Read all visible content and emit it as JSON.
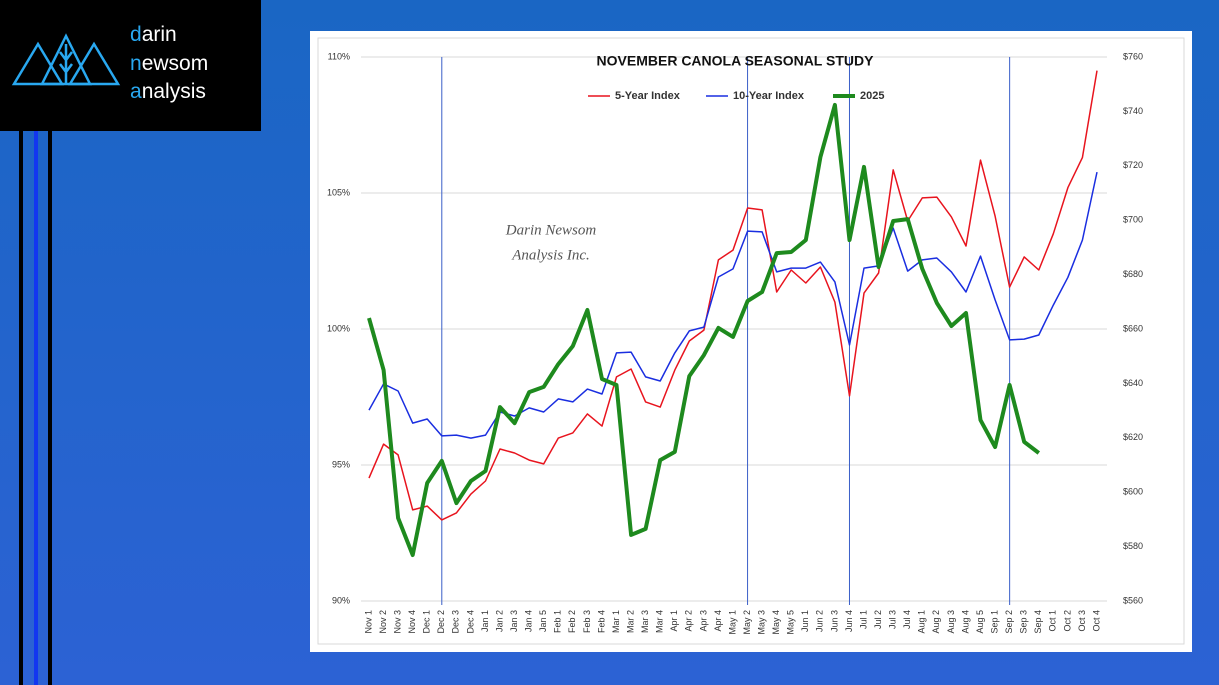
{
  "brand": {
    "line1": {
      "first": "d",
      "rest": "arin"
    },
    "line2": {
      "first": "n",
      "rest": "ewsom"
    },
    "line3": {
      "first": "a",
      "rest": "nalysis"
    }
  },
  "chart_data": {
    "type": "line",
    "title": "NOVEMBER CANOLA SEASONAL STUDY",
    "watermark": [
      "Darin Newsom",
      "Analysis Inc."
    ],
    "legend": "top",
    "grid": true,
    "categories": [
      "Nov 1",
      "Nov 2",
      "Nov 3",
      "Nov 4",
      "Dec 1",
      "Dec 2",
      "Dec 3",
      "Dec 4",
      "Jan 1",
      "Jan 2",
      "Jan 3",
      "Jan 4",
      "Jan 5",
      "Feb 1",
      "Feb 2",
      "Feb 3",
      "Feb 4",
      "Mar 1",
      "Mar 2",
      "Mar 3",
      "Mar 4",
      "Apr 1",
      "Apr 2",
      "Apr 3",
      "Apr 4",
      "May 1",
      "May 2",
      "May 3",
      "May 4",
      "May 5",
      "Jun 1",
      "Jun 2",
      "Jun 3",
      "Jun 4",
      "Jul 1",
      "Jul 2",
      "Jul 3",
      "Jul 4",
      "Aug 1",
      "Aug 2",
      "Aug 3",
      "Aug 4",
      "Aug 5",
      "Sep 1",
      "Sep 2",
      "Sep 3",
      "Sep 4",
      "Oct 1",
      "Oct 2",
      "Oct 3",
      "Oct 4"
    ],
    "reference_lines": [
      5,
      26,
      33,
      44
    ],
    "ylim": [
      90,
      110
    ],
    "yticks": [
      {
        "value": 90,
        "label": "90%"
      },
      {
        "value": 95,
        "label": "95%"
      },
      {
        "value": 100,
        "label": "100%"
      },
      {
        "value": 105,
        "label": "105%"
      },
      {
        "value": 110,
        "label": "110%"
      }
    ],
    "y2lim": [
      560,
      760
    ],
    "y2ticks": [
      {
        "value": 560,
        "label": "$560"
      },
      {
        "value": 580,
        "label": "$580"
      },
      {
        "value": 600,
        "label": "$600"
      },
      {
        "value": 620,
        "label": "$620"
      },
      {
        "value": 640,
        "label": "$640"
      },
      {
        "value": 660,
        "label": "$660"
      },
      {
        "value": 680,
        "label": "$680"
      },
      {
        "value": 700,
        "label": "$700"
      },
      {
        "value": 720,
        "label": "$720"
      },
      {
        "value": 740,
        "label": "$740"
      },
      {
        "value": 760,
        "label": "$760"
      }
    ],
    "series": [
      {
        "name": "5-Year Index",
        "color": "#e8141e",
        "width": 1.5,
        "values": [
          94.52,
          95.77,
          95.37,
          93.35,
          93.49,
          92.98,
          93.24,
          93.93,
          94.41,
          95.59,
          95.44,
          95.18,
          95.04,
          95.99,
          96.18,
          96.88,
          96.43,
          98.24,
          98.53,
          97.32,
          97.13,
          98.49,
          99.56,
          99.96,
          102.54,
          102.9,
          104.45,
          104.38,
          101.36,
          102.17,
          101.69,
          102.28,
          100.99,
          97.54,
          101.32,
          102.06,
          105.85,
          103.97,
          104.82,
          104.85,
          104.12,
          103.05,
          106.21,
          104.15,
          101.54,
          102.65,
          102.17,
          103.5,
          105.2,
          106.3,
          109.5
        ]
      },
      {
        "name": "10-Year Index",
        "color": "#1a2ee0",
        "width": 1.5,
        "values": [
          97.02,
          97.98,
          97.72,
          96.54,
          96.69,
          96.07,
          96.1,
          95.99,
          96.1,
          96.95,
          96.8,
          97.1,
          96.95,
          97.43,
          97.32,
          97.79,
          97.61,
          99.12,
          99.15,
          98.24,
          98.09,
          99.12,
          99.93,
          100.07,
          101.91,
          102.21,
          103.6,
          103.57,
          102.1,
          102.24,
          102.24,
          102.46,
          101.73,
          99.41,
          102.24,
          102.32,
          103.71,
          102.13,
          102.54,
          102.61,
          102.1,
          101.36,
          102.68,
          101.07,
          99.6,
          99.63,
          99.78,
          100.88,
          101.9,
          103.27,
          105.77
        ]
      },
      {
        "name": "2025",
        "color": "#1e8a1e",
        "width": 4,
        "axis": "y2",
        "values": [
          664.0,
          644.9,
          590.5,
          576.9,
          603.4,
          611.5,
          596.0,
          604.1,
          607.8,
          631.3,
          625.4,
          636.8,
          638.7,
          647.1,
          653.7,
          667.0,
          641.6,
          639.4,
          584.3,
          586.5,
          611.8,
          614.8,
          642.7,
          650.4,
          660.4,
          657.1,
          670.3,
          673.6,
          687.9,
          688.3,
          692.7,
          723.2,
          742.4,
          692.7,
          719.6,
          682.8,
          699.7,
          700.4,
          682.1,
          669.6,
          661.1,
          665.9,
          626.5,
          616.6,
          639.4,
          618.5,
          614.4,
          null,
          null,
          null,
          null
        ]
      }
    ]
  }
}
